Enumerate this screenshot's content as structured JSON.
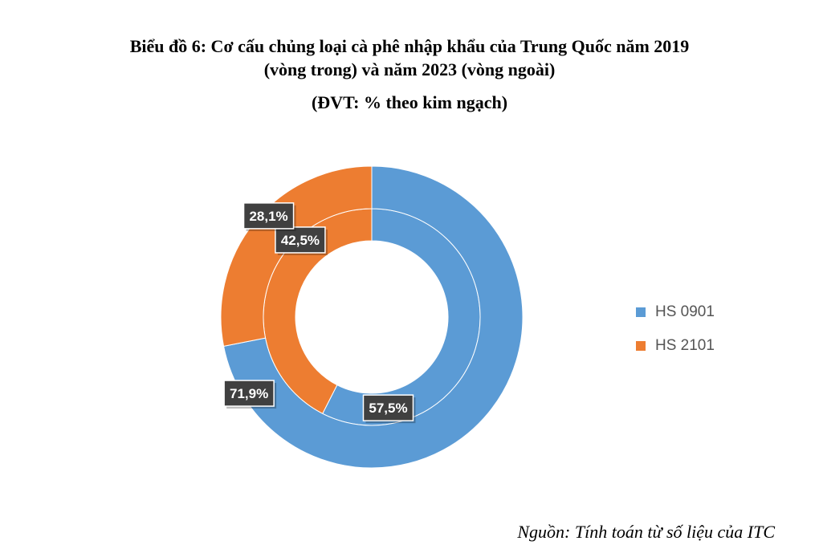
{
  "title_lines": [
    "Biểu đồ 6: Cơ cấu chủng loại cà phê nhập khẩu của Trung Quốc năm 2019",
    "(vòng trong) và năm 2023 (vòng ngoài)"
  ],
  "unit": "(ĐVT: % theo kim ngạch)",
  "source": "Nguồn: Tính toán từ số liệu của ITC",
  "colors": {
    "hs0901": "#5B9BD5",
    "hs2101": "#ED7D31"
  },
  "chart_data": {
    "type": "pie",
    "subtype": "doughnut",
    "categories": [
      "HS 0901",
      "HS 2101"
    ],
    "series": [
      {
        "ring": "inner",
        "year": "2019",
        "values": [
          57.5,
          42.5
        ],
        "labels": [
          "57,5%",
          "42,5%"
        ]
      },
      {
        "ring": "outer",
        "year": "2023",
        "values": [
          71.9,
          28.1
        ],
        "labels": [
          "71,9%",
          "28,1%"
        ]
      }
    ],
    "legend": {
      "position": "right",
      "entries": [
        "HS 0901",
        "HS 2101"
      ]
    }
  }
}
